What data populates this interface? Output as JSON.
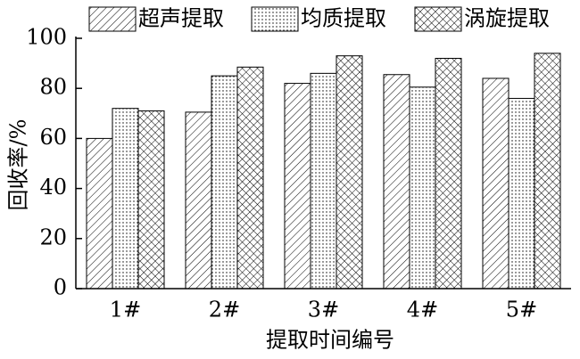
{
  "chart_data": {
    "type": "bar",
    "x_label": "提取时间编号",
    "y_label": "回收率/%",
    "categories": [
      "1#",
      "2#",
      "3#",
      "4#",
      "5#"
    ],
    "series": [
      {
        "name": "超声提取",
        "color": "#000000",
        "values": [
          60,
          70.5,
          82,
          85.5,
          84
        ]
      },
      {
        "name": "均质提取",
        "color": "#000000",
        "values": [
          72,
          85,
          86,
          80.5,
          76
        ]
      },
      {
        "name": "涡旋提取",
        "color": "#000000",
        "values": [
          71,
          88.5,
          93,
          92,
          94
        ]
      }
    ],
    "ylim": [
      0,
      100
    ],
    "yticks": [
      0,
      20,
      40,
      60,
      80,
      100
    ],
    "grid": false
  }
}
